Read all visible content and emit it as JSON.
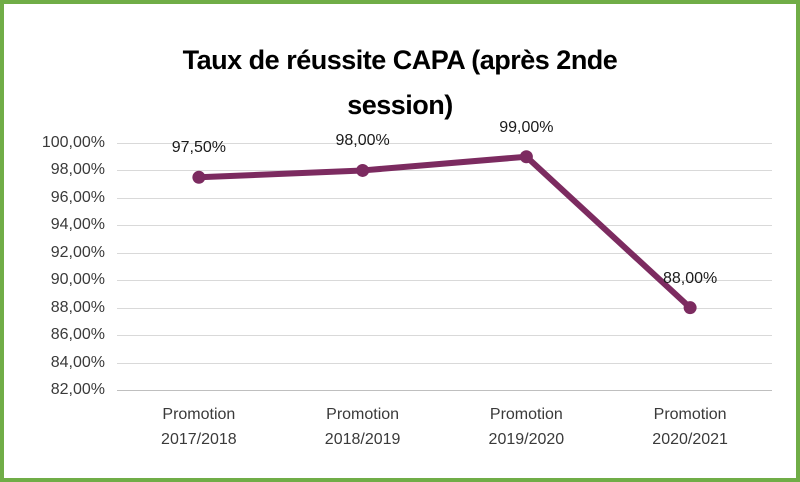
{
  "chart_data": {
    "type": "line",
    "title": "Taux de réussite CAPA (après 2nde session)",
    "categories": [
      "Promotion 2017/2018",
      "Promotion 2018/2019",
      "Promotion 2019/2020",
      "Promotion 2020/2021"
    ],
    "values": [
      97.5,
      98.0,
      99.0,
      88.0
    ],
    "data_labels": [
      "97,50%",
      "98,00%",
      "99,00%",
      "88,00%"
    ],
    "y_ticks": [
      {
        "value": 100,
        "label": "100,00%"
      },
      {
        "value": 98,
        "label": "98,00%"
      },
      {
        "value": 96,
        "label": "96,00%"
      },
      {
        "value": 94,
        "label": "94,00%"
      },
      {
        "value": 92,
        "label": "92,00%"
      },
      {
        "value": 90,
        "label": "90,00%"
      },
      {
        "value": 88,
        "label": "88,00%"
      },
      {
        "value": 86,
        "label": "86,00%"
      },
      {
        "value": 84,
        "label": "84,00%"
      },
      {
        "value": 82,
        "label": "82,00%"
      }
    ],
    "ylim": [
      82,
      100
    ],
    "xlabel": "",
    "ylabel": "",
    "grid": true,
    "legend": "none",
    "colors": {
      "series": "#7C2B60",
      "gridline": "#D9D9D9",
      "axis_line": "#BFBFBF",
      "border": "#70AD47",
      "title_text": "#000000",
      "tick_text": "#3a3a3a",
      "data_label_text": "#1a1a1a"
    }
  }
}
